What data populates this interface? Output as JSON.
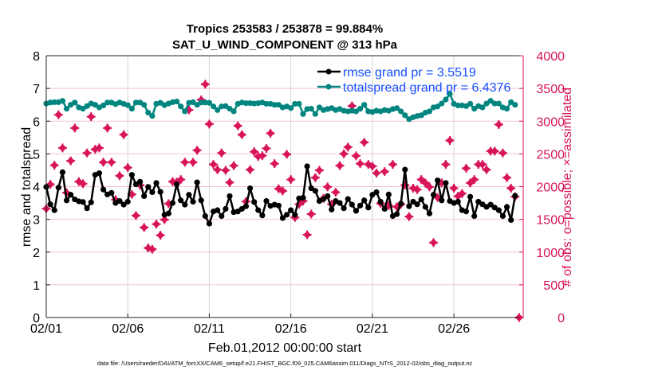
{
  "chart_data": {
    "type": "line",
    "title": "Tropics 253583 / 253878 = 99.884%",
    "subtitle": "SAT_U_WIND_COMPONENT @ 313 hPa",
    "xlabel": "Feb.01,2012 00:00:00 start",
    "ylabel": "rmse and totalspread",
    "y2label": "# of obs: o=possible; ×=assimilated",
    "footnote": "data file: /Users/raeder/DAI/ATM_forcXX/CAM6_setup/f.e21.FHIST_BGC.f09_025.CAM6assim.011/Diags_NTrS_2012-02/obs_diag_output.nc",
    "x_unit": "days since 02/01 00Z, 6-hourly",
    "xlim": [
      0,
      29.25
    ],
    "ylim": [
      0,
      8
    ],
    "y2lim": [
      0,
      4000
    ],
    "x_ticks": [
      0,
      5,
      10,
      15,
      20,
      25
    ],
    "x_tick_labels": [
      "02/01",
      "02/06",
      "02/11",
      "02/16",
      "02/21",
      "02/26"
    ],
    "y_ticks": [
      0,
      1,
      2,
      3,
      4,
      5,
      6,
      7,
      8
    ],
    "y2_ticks": [
      0,
      500,
      1000,
      1500,
      2000,
      2500,
      3000,
      3500,
      4000
    ],
    "grid": true,
    "legend_position": "top-right",
    "colors": {
      "rmse": "#000000",
      "totalspread": "#00857f",
      "obs": "#d8145a",
      "legend_text": "#1450ff",
      "grid_h": "#f2c4d4",
      "grid_v": "#d4d4d4"
    },
    "series": [
      {
        "name": "rmse grand pr = 3.5519",
        "axis": "left",
        "step_days": 0.25,
        "values": [
          3.99,
          3.46,
          3.28,
          3.97,
          4.44,
          3.58,
          3.75,
          3.61,
          3.55,
          3.53,
          3.34,
          3.52,
          4.36,
          4.41,
          3.91,
          3.76,
          3.81,
          3.5,
          3.56,
          3.45,
          3.54,
          4.36,
          4.07,
          4.15,
          3.71,
          3.99,
          3.83,
          4.11,
          3.84,
          3.14,
          3.18,
          3.5,
          4.07,
          3.58,
          3.45,
          3.75,
          3.54,
          4.13,
          3.58,
          3.1,
          2.87,
          3.24,
          3.28,
          3.1,
          3.32,
          3.71,
          3.22,
          3.24,
          3.32,
          3.4,
          3.95,
          3.53,
          3.28,
          3.12,
          3.56,
          3.41,
          3.45,
          3.42,
          3.04,
          3.14,
          3.28,
          3.14,
          3.64,
          3.66,
          4.62,
          3.95,
          3.87,
          3.56,
          3.62,
          3.71,
          3.3,
          3.56,
          3.5,
          3.34,
          3.62,
          3.45,
          3.26,
          3.42,
          3.58,
          3.36,
          3.75,
          3.83,
          3.54,
          3.32,
          3.76,
          3.1,
          3.16,
          3.48,
          4.52,
          3.4,
          3.54,
          3.46,
          3.61,
          3.38,
          3.18,
          3.75,
          4.19,
          3.58,
          4.11,
          3.56,
          3.5,
          3.54,
          3.28,
          3.24,
          3.69,
          3.1,
          3.54,
          3.46,
          3.38,
          3.45,
          3.36,
          3.28,
          3.1,
          3.38,
          2.98,
          3.72
        ]
      },
      {
        "name": "totalspread grand pr = 6.4376",
        "axis": "left",
        "step_days": 0.25,
        "values": [
          6.54,
          6.57,
          6.58,
          6.58,
          6.62,
          6.38,
          6.5,
          6.57,
          6.42,
          6.38,
          6.46,
          6.54,
          6.5,
          6.42,
          6.48,
          6.57,
          6.57,
          6.52,
          6.57,
          6.53,
          6.49,
          6.38,
          6.57,
          6.57,
          6.5,
          6.26,
          6.16,
          6.53,
          6.56,
          6.49,
          6.54,
          6.58,
          6.6,
          6.45,
          6.3,
          6.56,
          6.58,
          6.5,
          6.57,
          6.57,
          6.56,
          6.45,
          6.34,
          6.45,
          6.46,
          6.38,
          6.3,
          6.53,
          6.57,
          6.55,
          6.55,
          6.54,
          6.55,
          6.57,
          6.53,
          6.53,
          6.5,
          6.5,
          6.42,
          6.45,
          6.4,
          6.53,
          6.53,
          6.22,
          6.37,
          6.38,
          6.22,
          6.42,
          6.34,
          6.37,
          6.4,
          6.34,
          6.37,
          6.32,
          6.3,
          6.32,
          6.3,
          6.38,
          6.5,
          6.3,
          6.28,
          6.32,
          6.3,
          6.34,
          6.32,
          6.37,
          6.4,
          6.3,
          6.18,
          6.06,
          6.12,
          6.16,
          6.18,
          6.26,
          6.3,
          6.42,
          6.45,
          6.54,
          6.66,
          6.83,
          6.53,
          6.48,
          6.48,
          6.46,
          6.53,
          6.38,
          6.46,
          6.42,
          6.54,
          6.62,
          6.54,
          6.54,
          6.42,
          6.38,
          6.58,
          6.5
        ]
      },
      {
        "axis": "right",
        "step_days": 0.25,
        "marker": "diamond-plus",
        "values": [
          1663,
          2035,
          2327,
          3098,
          2591,
          1906,
          2393,
          2895,
          2076,
          2044,
          2514,
          3069,
          2570,
          2591,
          2372,
          2895,
          2372,
          1800,
          2165,
          2794,
          2291,
          1882,
          1557,
          2023,
          1375,
          1062,
          1042,
          1427,
          1257,
          1496,
          1740,
          2076,
          2068,
          2108,
          2372,
          3171,
          2372,
          2555,
          3325,
          3564,
          2956,
          2339,
          2259,
          2514,
          2250,
          2064,
          2320,
          2928,
          2794,
          1772,
          2259,
          2534,
          2461,
          2473,
          2583,
          2814,
          2351,
          1967,
          1934,
          2494,
          2108,
          1529,
          1731,
          1780,
          1265,
          1581,
          2137,
          2250,
          1821,
          1995,
          1731,
          1914,
          2320,
          2502,
          2603,
          3232,
          2469,
          2351,
          2676,
          2339,
          2311,
          2206,
          1743,
          2230,
          1711,
          2339,
          1691,
          1731,
          2023,
          1541,
          1975,
          1955,
          2108,
          2056,
          1995,
          1144,
          1833,
          2056,
          2339,
          2705,
          1975,
          1853,
          1894,
          2279,
          2056,
          2108,
          2339,
          2339,
          2259,
          2543,
          2543,
          2948,
          2514,
          2137,
          1975,
          1845,
          0
        ]
      }
    ]
  }
}
